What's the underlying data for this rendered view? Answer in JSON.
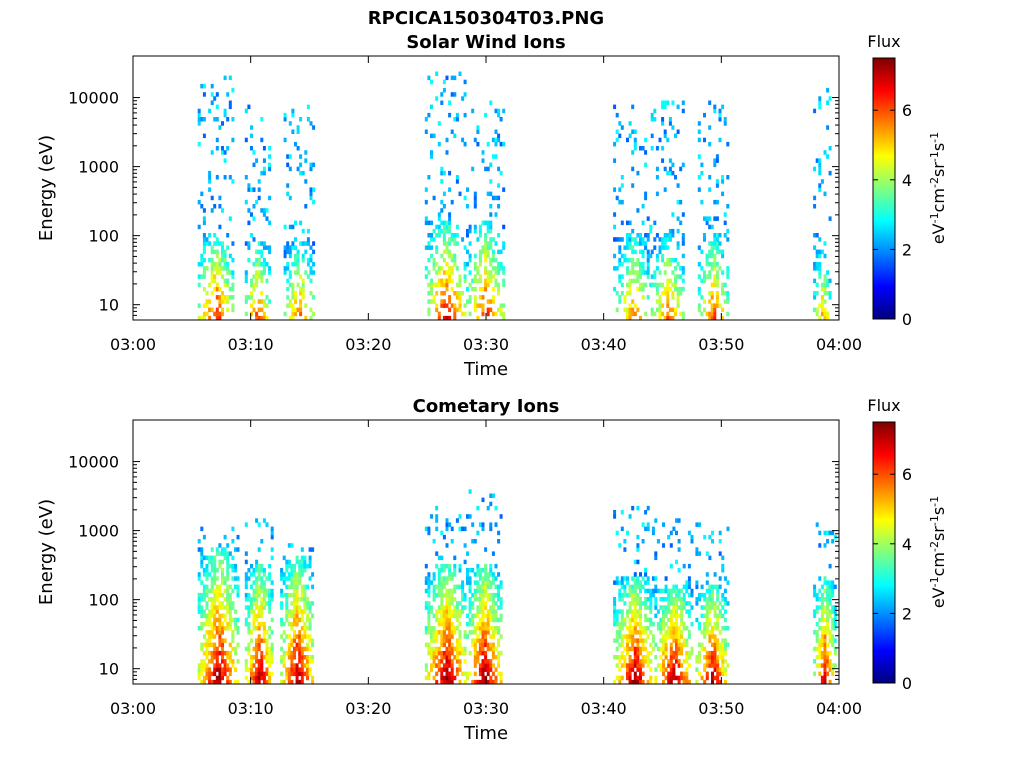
{
  "figure_title": "RPCICA150304T03.PNG",
  "colors": {
    "colormap": [
      "#00007f",
      "#0000ff",
      "#007fff",
      "#00ffff",
      "#7fff7f",
      "#ffff00",
      "#ff7f00",
      "#ff0000",
      "#7f0000"
    ],
    "axis": "#000000",
    "background": "#ffffff"
  },
  "chart_data": [
    {
      "type": "heatmap",
      "title": "Solar Wind Ions",
      "xlabel": "Time",
      "ylabel": "Energy (eV)",
      "x_ticks": [
        "03:00",
        "03:10",
        "03:20",
        "03:30",
        "03:40",
        "03:50",
        "04:00"
      ],
      "x_range_minutes": [
        0,
        60
      ],
      "y_scale": "log",
      "y_range": [
        6,
        40000
      ],
      "y_ticks": [
        10,
        100,
        1000,
        10000
      ],
      "y_tick_labels": [
        "10",
        "100",
        "1000",
        "10000"
      ],
      "colorbar": {
        "title": "Flux",
        "label_base": "eV",
        "label_parts": [
          "eV",
          "-1",
          "cm",
          "-2",
          "sr",
          "-1",
          "s",
          "-1"
        ],
        "range": [
          0,
          7.5
        ],
        "ticks": [
          0,
          2,
          4,
          6
        ],
        "tick_labels": [
          "0",
          "2",
          "4",
          "6"
        ]
      },
      "bursts": [
        {
          "t_start": 5.5,
          "t_end": 8.5,
          "low_energy_peak": 6.6,
          "high_flux_energy_max": 100,
          "scatter_energy_max": 20000
        },
        {
          "t_start": 9.5,
          "t_end": 11.5,
          "low_energy_peak": 6.4,
          "high_flux_energy_max": 80,
          "scatter_energy_max": 8000
        },
        {
          "t_start": 12.8,
          "t_end": 15.3,
          "low_energy_peak": 6.0,
          "high_flux_energy_max": 80,
          "scatter_energy_max": 7000
        },
        {
          "t_start": 24.8,
          "t_end": 28.3,
          "low_energy_peak": 6.8,
          "high_flux_energy_max": 150,
          "scatter_energy_max": 22000
        },
        {
          "t_start": 28.3,
          "t_end": 31.5,
          "low_energy_peak": 6.4,
          "high_flux_energy_max": 150,
          "scatter_energy_max": 8000
        },
        {
          "t_start": 40.8,
          "t_end": 44.0,
          "low_energy_peak": 5.8,
          "high_flux_energy_max": 100,
          "scatter_energy_max": 7000
        },
        {
          "t_start": 44.0,
          "t_end": 46.8,
          "low_energy_peak": 6.0,
          "high_flux_energy_max": 100,
          "scatter_energy_max": 9000
        },
        {
          "t_start": 48.0,
          "t_end": 50.5,
          "low_energy_peak": 6.2,
          "high_flux_energy_max": 100,
          "scatter_energy_max": 9000
        },
        {
          "t_start": 57.8,
          "t_end": 59.2,
          "low_energy_peak": 5.6,
          "high_flux_energy_max": 60,
          "scatter_energy_max": 13000
        }
      ]
    },
    {
      "type": "heatmap",
      "title": "Cometary Ions",
      "xlabel": "Time",
      "ylabel": "Energy (eV)",
      "x_ticks": [
        "03:00",
        "03:10",
        "03:20",
        "03:30",
        "03:40",
        "03:50",
        "04:00"
      ],
      "x_range_minutes": [
        0,
        60
      ],
      "y_scale": "log",
      "y_range": [
        6,
        40000
      ],
      "y_ticks": [
        10,
        100,
        1000,
        10000
      ],
      "y_tick_labels": [
        "10",
        "100",
        "1000",
        "10000"
      ],
      "colorbar": {
        "title": "Flux",
        "label_base": "eV",
        "label_parts": [
          "eV",
          "-1",
          "cm",
          "-2",
          "sr",
          "-1",
          "s",
          "-1"
        ],
        "range": [
          0,
          7.5
        ],
        "ticks": [
          0,
          2,
          4,
          6
        ],
        "tick_labels": [
          "0",
          "2",
          "4",
          "6"
        ]
      },
      "bursts": [
        {
          "t_start": 5.5,
          "t_end": 8.8,
          "low_energy_peak": 7.4,
          "high_flux_energy_max": 500,
          "scatter_energy_max": 1100
        },
        {
          "t_start": 9.5,
          "t_end": 11.8,
          "low_energy_peak": 7.4,
          "high_flux_energy_max": 300,
          "scatter_energy_max": 1400
        },
        {
          "t_start": 12.5,
          "t_end": 15.3,
          "low_energy_peak": 7.3,
          "high_flux_energy_max": 400,
          "scatter_energy_max": 600
        },
        {
          "t_start": 24.8,
          "t_end": 28.3,
          "low_energy_peak": 7.4,
          "high_flux_energy_max": 300,
          "scatter_energy_max": 2000
        },
        {
          "t_start": 28.3,
          "t_end": 31.3,
          "low_energy_peak": 7.4,
          "high_flux_energy_max": 300,
          "scatter_energy_max": 4500
        },
        {
          "t_start": 40.8,
          "t_end": 44.3,
          "low_energy_peak": 7.3,
          "high_flux_energy_max": 200,
          "scatter_energy_max": 2200
        },
        {
          "t_start": 44.3,
          "t_end": 47.5,
          "low_energy_peak": 7.4,
          "high_flux_energy_max": 150,
          "scatter_energy_max": 1500
        },
        {
          "t_start": 47.8,
          "t_end": 50.5,
          "low_energy_peak": 7.2,
          "high_flux_energy_max": 150,
          "scatter_energy_max": 1300
        },
        {
          "t_start": 57.8,
          "t_end": 59.6,
          "low_energy_peak": 7.0,
          "high_flux_energy_max": 200,
          "scatter_energy_max": 1400
        }
      ]
    }
  ]
}
